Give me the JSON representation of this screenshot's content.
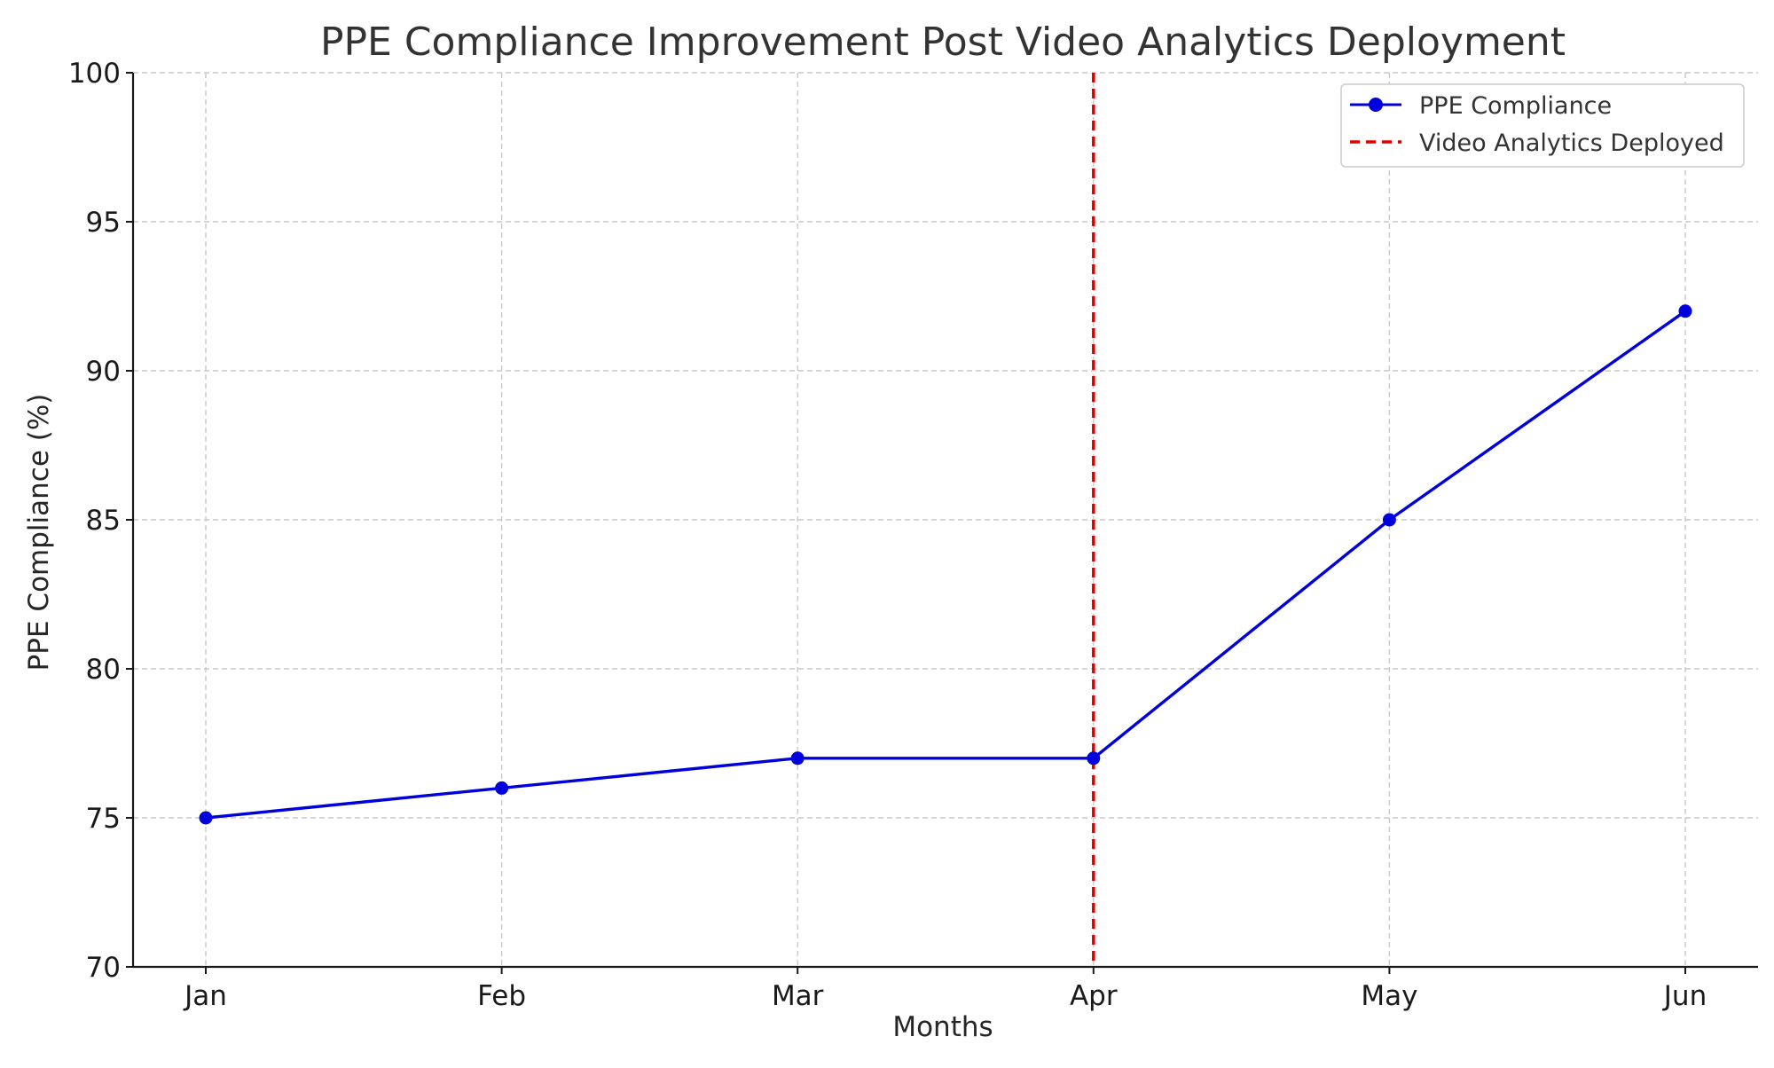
{
  "chart_data": {
    "type": "line",
    "title": "PPE Compliance Improvement Post Video Analytics Deployment",
    "xlabel": "Months",
    "ylabel": "PPE Compliance (%)",
    "categories": [
      "Jan",
      "Feb",
      "Mar",
      "Apr",
      "May",
      "Jun"
    ],
    "series": [
      {
        "name": "PPE Compliance",
        "values": [
          75,
          76,
          77,
          77,
          85,
          92
        ],
        "color": "#0000dd",
        "marker": "circle"
      }
    ],
    "reference_line": {
      "name": "Video Analytics Deployed",
      "x": "Apr",
      "color": "#dd0000",
      "style": "dashed"
    },
    "ylim": [
      70,
      100
    ],
    "yticks": [
      70,
      75,
      80,
      85,
      90,
      95,
      100
    ],
    "grid": true,
    "legend": "top-right"
  }
}
